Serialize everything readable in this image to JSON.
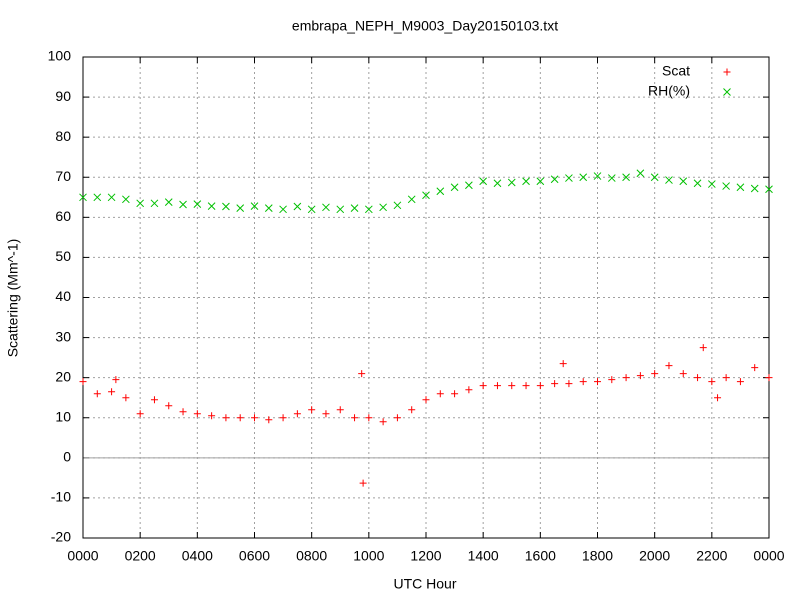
{
  "chart_data": {
    "type": "scatter",
    "title": "embrapa_NEPH_M9003_Day20150103.txt",
    "x_label": "UTC Hour",
    "y_label": "Scattering (Mm^-1)",
    "xlim": [
      0,
      24
    ],
    "xticks": [
      {
        "value": 0,
        "label": "0000"
      },
      {
        "value": 2,
        "label": "0200"
      },
      {
        "value": 4,
        "label": "0400"
      },
      {
        "value": 6,
        "label": "0600"
      },
      {
        "value": 8,
        "label": "0800"
      },
      {
        "value": 10,
        "label": "1000"
      },
      {
        "value": 12,
        "label": "1200"
      },
      {
        "value": 14,
        "label": "1400"
      },
      {
        "value": 16,
        "label": "1600"
      },
      {
        "value": 18,
        "label": "1800"
      },
      {
        "value": 20,
        "label": "2000"
      },
      {
        "value": 22,
        "label": "2200"
      },
      {
        "value": 24,
        "label": "0000"
      }
    ],
    "ylim": [
      -20,
      100
    ],
    "yticks": [
      -20,
      -10,
      0,
      10,
      20,
      30,
      40,
      50,
      60,
      70,
      80,
      90,
      100
    ],
    "grid": true,
    "legend": "top-right",
    "series": [
      {
        "name": "Scat",
        "color": "#ff0000",
        "marker": "plus",
        "x": [
          0,
          0.5,
          1,
          1.5,
          2,
          2.5,
          3,
          3.5,
          4,
          4.5,
          5,
          5.5,
          6,
          6.5,
          7,
          7.5,
          8,
          8.5,
          9,
          9.5,
          10,
          10.5,
          11,
          11.5,
          12,
          12.5,
          13,
          13.5,
          14,
          14.5,
          15,
          15.5,
          16,
          16.5,
          17,
          17.5,
          18,
          18.5,
          19,
          19.5,
          20,
          20.5,
          21,
          21.5,
          22,
          22.5,
          23,
          23.5,
          24,
          1.15,
          9.75,
          9.8,
          16.8,
          21.7,
          22.2
        ],
        "values": [
          19,
          16,
          16.5,
          15,
          11,
          14.5,
          13,
          11.5,
          11,
          10.5,
          10,
          10,
          10,
          9.5,
          10,
          11,
          12,
          11,
          12,
          10,
          10,
          9,
          10,
          12,
          14.5,
          16,
          16,
          17,
          18,
          18,
          18,
          18,
          18,
          18.5,
          18.5,
          19,
          19,
          19.5,
          20,
          20.5,
          21,
          23,
          21,
          20,
          19,
          20,
          19,
          22.5,
          20,
          19.5,
          21,
          -6.3,
          23.5,
          27.5,
          15
        ]
      },
      {
        "name": "RH(%)",
        "color": "#00c000",
        "marker": "cross",
        "x": [
          0,
          0.5,
          1,
          1.5,
          2,
          2.5,
          3,
          3.5,
          4,
          4.5,
          5,
          5.5,
          6,
          6.5,
          7,
          7.5,
          8,
          8.5,
          9,
          9.5,
          10,
          10.5,
          11,
          11.5,
          12,
          12.5,
          13,
          13.5,
          14,
          14.5,
          15,
          15.5,
          16,
          16.5,
          17,
          17.5,
          18,
          18.5,
          19,
          19.5,
          20,
          20.5,
          21,
          21.5,
          22,
          22.5,
          23,
          23.5,
          24
        ],
        "values": [
          65,
          65,
          65,
          64.5,
          63.5,
          63.5,
          63.8,
          63.2,
          63.3,
          62.8,
          62.7,
          62.3,
          62.8,
          62.3,
          62,
          62.7,
          62,
          62.5,
          62,
          62.3,
          62,
          62.5,
          63,
          64.5,
          65.5,
          66.5,
          67.5,
          68,
          69,
          68.5,
          68.7,
          69,
          69,
          69.5,
          69.8,
          70,
          70.3,
          69.8,
          70,
          71,
          70,
          69.3,
          69,
          68.5,
          68.3,
          67.8,
          67.5,
          67.2,
          67
        ]
      }
    ]
  }
}
